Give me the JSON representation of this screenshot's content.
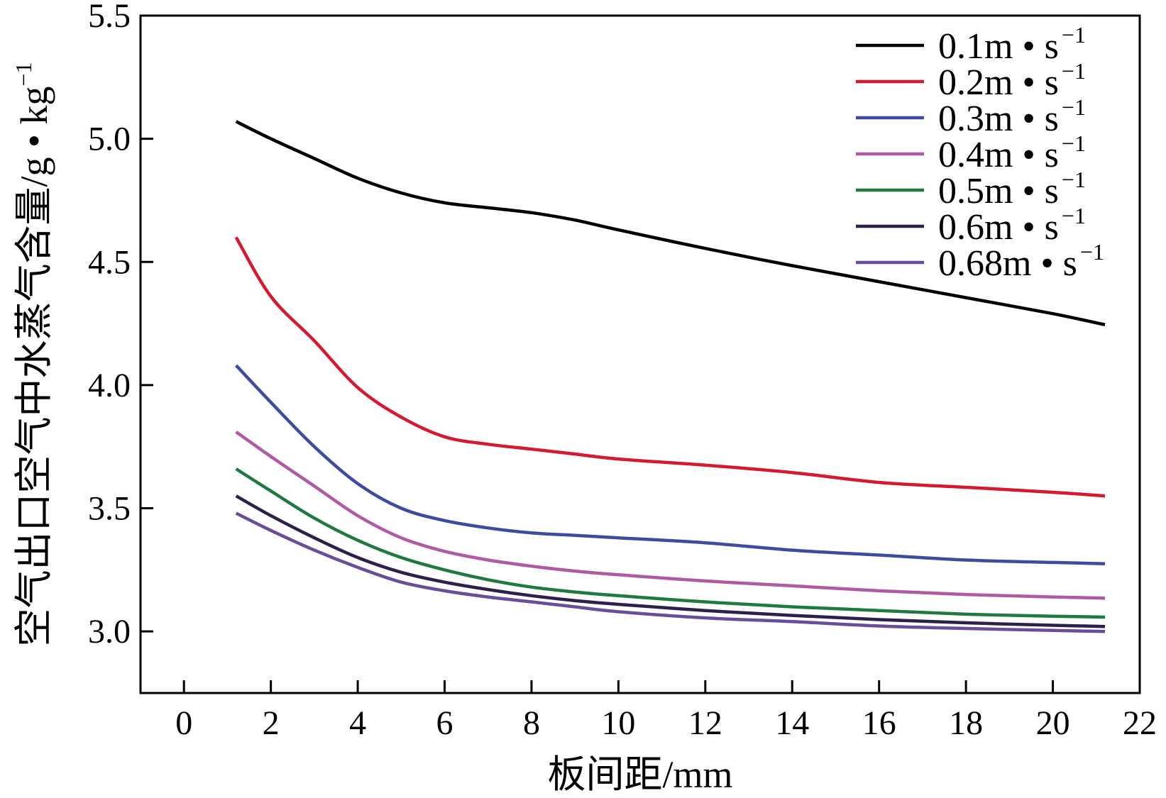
{
  "chart_data": {
    "type": "line",
    "xlabel": "板间距/mm",
    "ylabel": "空气出口空气中水蒸气含量/g • kg",
    "ylabel_sup": "−1",
    "xlim": [
      -1,
      22
    ],
    "ylim": [
      2.75,
      5.5
    ],
    "xticks": [
      0,
      2,
      4,
      6,
      8,
      10,
      12,
      14,
      16,
      18,
      20,
      22
    ],
    "yticks": [
      3.0,
      3.5,
      4.0,
      4.5,
      5.0,
      5.5
    ],
    "ytick_labels": [
      "3.0",
      "3.5",
      "4.0",
      "4.5",
      "5.0",
      "5.5"
    ],
    "legend_position": "top-right",
    "grid": false,
    "series": [
      {
        "name": "0.1m • s",
        "sup": "−1",
        "color": "#000000",
        "x": [
          1.2,
          2,
          3,
          4,
          5,
          6,
          7,
          8,
          9,
          10,
          12,
          14,
          16,
          18,
          20,
          21.2
        ],
        "y": [
          5.07,
          5.0,
          4.92,
          4.84,
          4.78,
          4.74,
          4.72,
          4.7,
          4.67,
          4.63,
          4.555,
          4.485,
          4.42,
          4.355,
          4.29,
          4.245
        ]
      },
      {
        "name": "0.2m • s",
        "sup": "−1",
        "color": "#d7192f",
        "x": [
          1.2,
          2,
          3,
          4,
          5,
          6,
          7,
          8,
          9,
          10,
          12,
          14,
          16,
          18,
          20,
          21.2
        ],
        "y": [
          4.6,
          4.36,
          4.18,
          3.99,
          3.87,
          3.79,
          3.76,
          3.74,
          3.72,
          3.7,
          3.675,
          3.645,
          3.605,
          3.585,
          3.565,
          3.55
        ]
      },
      {
        "name": "0.3m • s",
        "sup": "−1",
        "color": "#3d4ba0",
        "x": [
          1.2,
          2,
          3,
          4,
          5,
          6,
          7,
          8,
          9,
          10,
          12,
          14,
          16,
          18,
          20,
          21.2
        ],
        "y": [
          4.08,
          3.93,
          3.75,
          3.6,
          3.5,
          3.45,
          3.42,
          3.4,
          3.39,
          3.38,
          3.36,
          3.33,
          3.31,
          3.29,
          3.28,
          3.275
        ]
      },
      {
        "name": "0.4m • s",
        "sup": "−1",
        "color": "#b05aa5",
        "x": [
          1.2,
          2,
          3,
          4,
          5,
          6,
          7,
          8,
          9,
          10,
          12,
          14,
          16,
          18,
          20,
          21.2
        ],
        "y": [
          3.81,
          3.71,
          3.59,
          3.47,
          3.38,
          3.325,
          3.29,
          3.265,
          3.245,
          3.23,
          3.205,
          3.185,
          3.165,
          3.15,
          3.14,
          3.135
        ]
      },
      {
        "name": "0.5m • s",
        "sup": "−1",
        "color": "#1f7a3f",
        "x": [
          1.2,
          2,
          3,
          4,
          5,
          6,
          7,
          8,
          9,
          10,
          12,
          14,
          16,
          18,
          20,
          21.2
        ],
        "y": [
          3.66,
          3.57,
          3.46,
          3.37,
          3.3,
          3.25,
          3.21,
          3.18,
          3.16,
          3.145,
          3.12,
          3.1,
          3.085,
          3.07,
          3.062,
          3.058
        ]
      },
      {
        "name": "0.6m • s",
        "sup": "−1",
        "color": "#2e1f4d",
        "x": [
          1.2,
          2,
          3,
          4,
          5,
          6,
          7,
          8,
          9,
          10,
          12,
          14,
          16,
          18,
          20,
          21.2
        ],
        "y": [
          3.55,
          3.47,
          3.38,
          3.3,
          3.24,
          3.2,
          3.17,
          3.145,
          3.125,
          3.11,
          3.085,
          3.065,
          3.048,
          3.035,
          3.025,
          3.02
        ]
      },
      {
        "name": "0.68m • s",
        "sup": "−1",
        "color": "#6a4d9a",
        "x": [
          1.2,
          2,
          3,
          4,
          5,
          6,
          7,
          8,
          9,
          10,
          12,
          14,
          16,
          18,
          20,
          21.2
        ],
        "y": [
          3.48,
          3.41,
          3.33,
          3.26,
          3.2,
          3.165,
          3.14,
          3.12,
          3.1,
          3.08,
          3.055,
          3.04,
          3.022,
          3.012,
          3.004,
          3.0
        ]
      }
    ]
  }
}
